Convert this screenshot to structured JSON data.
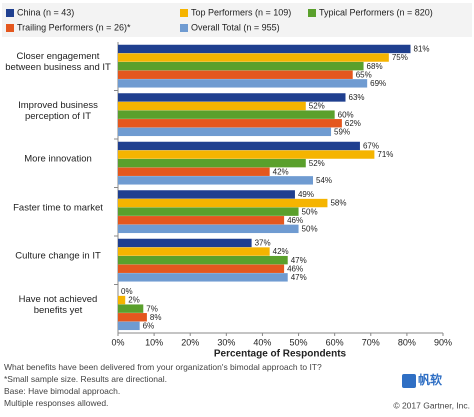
{
  "chart_data": {
    "type": "hbar",
    "categories": [
      "Closer engagement between business and IT",
      "Improved business perception of IT",
      "More innovation",
      "Faster time to market",
      "Culture change in IT",
      "Have not achieved benefits yet"
    ],
    "series": [
      {
        "name": "China (n = 43)",
        "color": "#1f3f8f",
        "values": [
          81,
          63,
          67,
          49,
          37,
          0
        ],
        "value_labels": [
          "81%",
          "63%",
          "67%",
          "49%",
          "37%",
          "0%"
        ]
      },
      {
        "name": "Top Performers (n = 109)",
        "color": "#f5b400",
        "values": [
          75,
          52,
          71,
          58,
          42,
          2
        ],
        "value_labels": [
          "75%",
          "52%",
          "71%",
          "58%",
          "42%",
          "2%"
        ]
      },
      {
        "name": "Typical Performers (n = 820)",
        "color": "#5aa02c",
        "values": [
          68,
          60,
          52,
          50,
          47,
          7
        ],
        "value_labels": [
          "68%",
          "60%",
          "52%",
          "50%",
          "47%",
          "7%"
        ]
      },
      {
        "name": "Trailing Performers (n = 26)*",
        "color": "#e4571e",
        "values": [
          65,
          62,
          42,
          46,
          46,
          8
        ],
        "value_labels": [
          "65%",
          "62%",
          "42%",
          "46%",
          "46%",
          "8%"
        ]
      },
      {
        "name": "Overall Total (n = 955)",
        "color": "#6f9bd1",
        "values": [
          69,
          59,
          54,
          50,
          47,
          6
        ],
        "value_labels": [
          "69%",
          "59%",
          "54%",
          "50%",
          "47%",
          "6%"
        ]
      }
    ],
    "xlim": [
      0,
      90
    ],
    "xticks": [
      {
        "value": 0,
        "label": "0%"
      },
      {
        "value": 10,
        "label": "10%"
      },
      {
        "value": 20,
        "label": "20%"
      },
      {
        "value": 30,
        "label": "30%"
      },
      {
        "value": 40,
        "label": "40%"
      },
      {
        "value": 50,
        "label": "50%"
      },
      {
        "value": 60,
        "label": "60%"
      },
      {
        "value": 70,
        "label": "70%"
      },
      {
        "value": 80,
        "label": "80%"
      },
      {
        "value": 90,
        "label": "90%"
      }
    ],
    "xlabel": "Percentage of Respondents",
    "grid": false,
    "notes": [
      "What benefits have been delivered from your organization's bimodal approach to IT?",
      "*Small sample size. Results are directional.",
      "Base: Have bimodal approach.",
      "Multiple responses allowed."
    ],
    "source": "© 2017 Gartner, Inc.",
    "logo": "帆软"
  }
}
